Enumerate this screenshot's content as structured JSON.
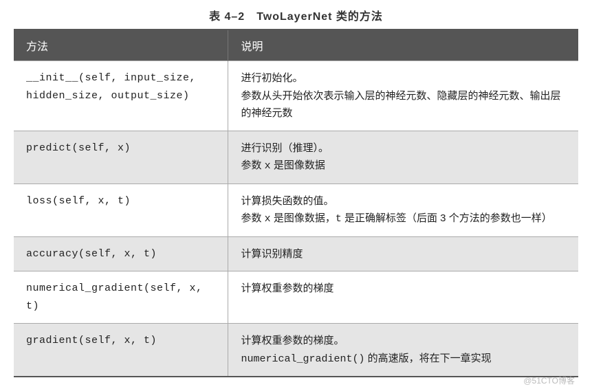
{
  "title": "表 4–2　TwoLayerNet 类的方法",
  "header": {
    "col1": "方法",
    "col2": "说明"
  },
  "rows": [
    {
      "method": "__init__(self, input_size, hidden_size, output_size)",
      "desc_line1": "进行初始化。",
      "desc_line2": "参数从头开始依次表示输入层的神经元数、隐藏层的神经元数、输出层的神经元数"
    },
    {
      "method": "predict(self, x)",
      "desc_line1": "进行识别（推理）。",
      "desc_prefix": "参数 ",
      "desc_mono": "x",
      "desc_suffix": " 是图像数据"
    },
    {
      "method": "loss(self, x, t)",
      "desc_line1": "计算损失函数的值。",
      "desc_prefix": "参数 ",
      "desc_mono1": "x",
      "desc_mid": " 是图像数据，",
      "desc_mono2": "t",
      "desc_suffix": " 是正确解标签（后面 3 个方法的参数也一样）"
    },
    {
      "method": "accuracy(self, x, t)",
      "desc_line1": "计算识别精度"
    },
    {
      "method": "numerical_gradient(self, x, t)",
      "desc_line1": "计算权重参数的梯度"
    },
    {
      "method": "gradient(self, x, t)",
      "desc_line1": "计算权重参数的梯度。",
      "desc_mono": "numerical_gradient()",
      "desc_suffix": " 的高速版，将在下一章实现"
    }
  ],
  "watermark": "@51CTO博客",
  "colors": {
    "header_bg": "#555555",
    "header_text": "#ffffff",
    "row_even_bg": "#e5e5e5",
    "row_odd_bg": "#ffffff",
    "border": "#aaaaaa",
    "text": "#222222"
  }
}
